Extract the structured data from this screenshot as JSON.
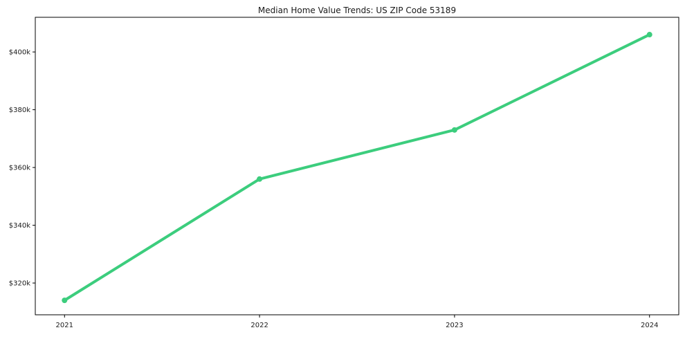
{
  "colors": {
    "line": "#3ccd7d",
    "axis": "#000000",
    "text": "#1a1a1a",
    "background": "#ffffff"
  },
  "chart_data": {
    "type": "line",
    "title": "Median Home Value Trends: US ZIP Code 53189",
    "categories": [
      "2021",
      "2022",
      "2023",
      "2024"
    ],
    "values": [
      314000,
      356000,
      373000,
      406000
    ],
    "xlabel": "",
    "ylabel": "",
    "y_tick_values": [
      320000,
      340000,
      360000,
      380000,
      400000
    ],
    "y_tick_labels": [
      "$320k",
      "$340k",
      "$360k",
      "$380k",
      "$400k"
    ],
    "ylim": [
      309000,
      412000
    ],
    "grid": false,
    "legend_position": "none",
    "marker": "circle",
    "line_width": 4
  }
}
